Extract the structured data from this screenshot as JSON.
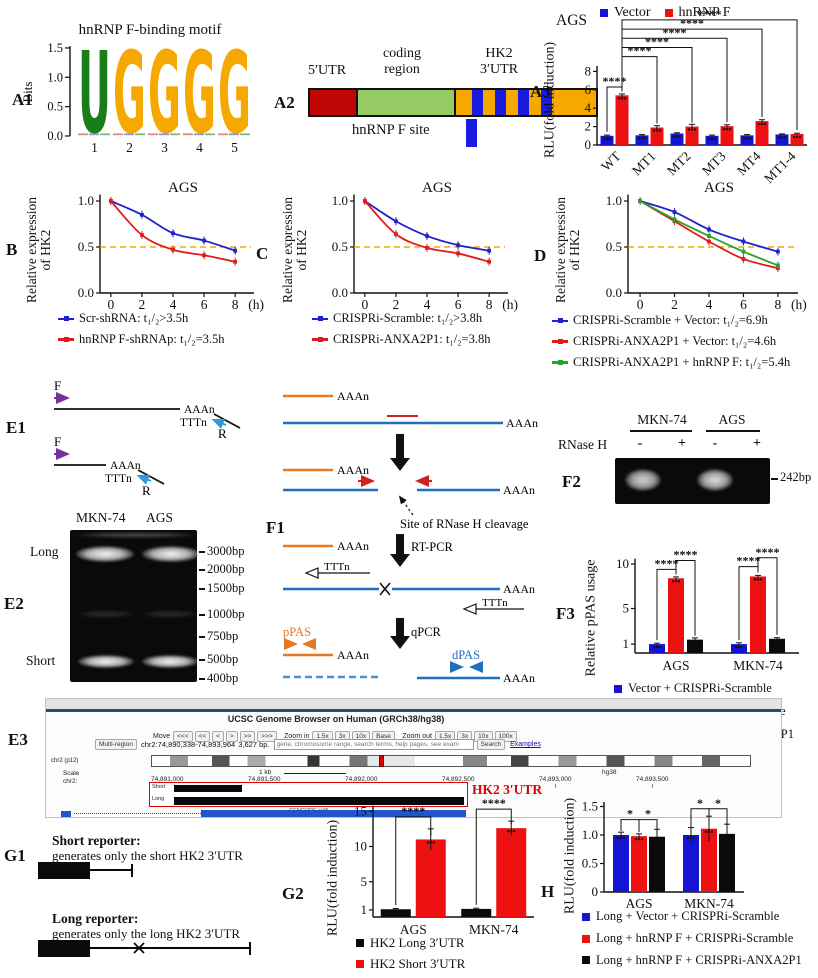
{
  "colors": {
    "blue": "#1414d2",
    "red": "#ee1111",
    "black_bar": "#0b0b0b",
    "green": "#2ca02c",
    "gold": "#f5a800",
    "logo_green": "#1a7d1a",
    "dash_orange": "#f0a800",
    "purple": "#7a2fa0",
    "light_blue": "#2e9bd6",
    "f1_orange": "#e87722",
    "f1_blue": "#1f6fbf",
    "highlight_red": "#e00000"
  },
  "panels": {
    "a1": {
      "label": "A1",
      "title": "hnRNP F-binding motif",
      "ylabel": "Bits",
      "yticks": [
        "1.5",
        "1.0",
        "0.5",
        "0.0"
      ],
      "positions": [
        "1",
        "2",
        "3",
        "4",
        "5"
      ],
      "letters": [
        "U",
        "G",
        "G",
        "G",
        "G"
      ]
    },
    "a2": {
      "label": "A2",
      "utr5": "5′UTR",
      "coding": "coding\nregion",
      "hk2": "HK2\n3′UTR",
      "site": "hnRNP F site"
    },
    "a3": {
      "label": "A3"
    },
    "b": {
      "label": "B"
    },
    "c": {
      "label": "C"
    },
    "d": {
      "label": "D"
    },
    "e1": {
      "label": "E1",
      "forward": "F",
      "reverse": "R",
      "polyA": "AAAn",
      "polyT": "TTTn"
    },
    "e2": {
      "label": "E2",
      "lanes": [
        "MKN-74",
        "AGS"
      ],
      "long": "Long",
      "short": "Short",
      "markers": [
        "3000bp",
        "2000bp",
        "1500bp",
        "1000bp",
        "750bp",
        "500bp",
        "400bp"
      ]
    },
    "e3": {
      "label": "E3",
      "title": "UCSC Genome Browser on Human (GRCh38/hg38)",
      "move_label": "Move",
      "move_buttons": [
        "<<<",
        "<<",
        "<",
        ">",
        ">>",
        ">>>"
      ],
      "zoom_in_label": "Zoom in",
      "zoom_in_buttons": [
        "1.5x",
        "3x",
        "10x",
        "Base"
      ],
      "zoom_out_label": "Zoom out",
      "zoom_out_buttons": [
        "1.5x",
        "3x",
        "10x",
        "100x"
      ],
      "multi_region": "Multi-region",
      "position": "chr2:74,890,338-74,893,964",
      "length": "3,627 bp.",
      "search_placeholder": "gene, chromosome range, search terms, help pages, see exam",
      "search_button": "Search",
      "examples_link": "Examples",
      "chrom_label": "chr2 (p12)",
      "scale_label": "Scale",
      "chrom": "chr2:",
      "scale_bar": "1 kb",
      "assembly": "hg38",
      "coords": [
        "74,891,000",
        "74,891,500",
        "74,892,000",
        "74,892,500",
        "74,893,000",
        "74,893,500"
      ],
      "track_short": "Short",
      "track_long": "Long",
      "gencode": "GENCODE V48",
      "highlight_label": "HK2 3′UTR"
    },
    "f1": {
      "label": "F1",
      "polyA": "AAAn",
      "polyT": "TTTn",
      "cleavage": "Site of RNase H cleavage",
      "rtpcr": "RT-PCR",
      "qpcr": "qPCR",
      "ppas": "pPAS",
      "dpas": "dPAS"
    },
    "f2": {
      "label": "F2",
      "groups": [
        "MKN-74",
        "AGS"
      ],
      "enzyme": "RNase H",
      "lanes": [
        "-",
        "+",
        "-",
        "+"
      ],
      "band": "242bp"
    },
    "f3": {
      "label": "F3"
    },
    "g1": {
      "label": "G1",
      "short_title": "Short reporter:",
      "short_desc": "generates only the short HK2 3′UTR",
      "long_title": "Long reporter:",
      "long_desc": "generates only the long HK2 3′UTR"
    },
    "g2": {
      "label": "G2"
    },
    "h": {
      "label": "H"
    }
  },
  "chart_data": [
    {
      "id": "A3",
      "type": "bar",
      "title": "AGS",
      "ylabel": "RLU(fold induction)",
      "ylim": [
        0,
        8.6
      ],
      "grid": false,
      "legend_position": "top",
      "yticks": [
        [
          0,
          "0"
        ],
        [
          2,
          "2"
        ],
        [
          4,
          "4"
        ],
        [
          6,
          "6"
        ],
        [
          8,
          "8"
        ]
      ],
      "categories": [
        "WT",
        "MT1",
        "MT2",
        "MT3",
        "MT4",
        "MT1-4"
      ],
      "series": [
        {
          "name": "Vector",
          "color": "#1414d2",
          "values": [
            1.0,
            1.05,
            1.25,
            1.0,
            1.05,
            1.15
          ],
          "err": [
            0.08,
            0.08,
            0.08,
            0.08,
            0.08,
            0.06
          ]
        },
        {
          "name": "hnRNP F",
          "color": "#ee1111",
          "values": [
            5.4,
            1.9,
            2.0,
            2.05,
            2.6,
            1.2
          ],
          "err": [
            0.15,
            0.2,
            0.25,
            0.15,
            0.15,
            0.08
          ]
        }
      ],
      "sig": [
        {
          "a": [
            0,
            0
          ],
          "b": [
            0,
            1
          ],
          "y": 6.3,
          "label": "****"
        },
        {
          "a": [
            0,
            1
          ],
          "b": [
            1,
            1
          ],
          "y": 9.6,
          "label": "****"
        },
        {
          "a": [
            0,
            1
          ],
          "b": [
            2,
            1
          ],
          "y": 10.6,
          "label": "****"
        },
        {
          "a": [
            0,
            1
          ],
          "b": [
            3,
            1
          ],
          "y": 11.6,
          "label": "****"
        },
        {
          "a": [
            0,
            1
          ],
          "b": [
            4,
            1
          ],
          "y": 12.6,
          "label": "****"
        },
        {
          "a": [
            0,
            1
          ],
          "b": [
            5,
            1
          ],
          "y": 13.6,
          "label": "****"
        }
      ]
    },
    {
      "id": "B",
      "type": "line",
      "title": "AGS",
      "ylabel": "Relative expression\nof HK2",
      "xlabel": "(h)",
      "x": [
        0,
        2,
        4,
        6,
        8
      ],
      "xticks": [
        0,
        2,
        4,
        6,
        8
      ],
      "yticks": [
        [
          0,
          "0.0"
        ],
        [
          0.5,
          "0.5"
        ],
        [
          1,
          "1.0"
        ]
      ],
      "ylim": [
        0,
        1.1
      ],
      "hline": 0.5,
      "legend_position": "bottom",
      "series": [
        {
          "name": "Scr-shRNA: t₁/₂>3.5h",
          "color": "#2121cc",
          "values": [
            1.0,
            0.85,
            0.65,
            0.57,
            0.46
          ]
        },
        {
          "name": "hnRNP F-shRNAp: t₁/₂=3.5h",
          "color": "#e01b1b",
          "values": [
            1.0,
            0.63,
            0.47,
            0.41,
            0.34
          ]
        }
      ]
    },
    {
      "id": "C",
      "type": "line",
      "title": "AGS",
      "ylabel": "Relative expression\nof HK2",
      "xlabel": "(h)",
      "x": [
        0,
        2,
        4,
        6,
        8
      ],
      "xticks": [
        0,
        2,
        4,
        6,
        8
      ],
      "yticks": [
        [
          0,
          "0.0"
        ],
        [
          0.5,
          "0.5"
        ],
        [
          1,
          "1.0"
        ]
      ],
      "ylim": [
        0,
        1.1
      ],
      "hline": 0.5,
      "legend_position": "bottom",
      "series": [
        {
          "name": "CRISPRi-Scramble: t₁/₂>3.8h",
          "color": "#2121cc",
          "values": [
            1.0,
            0.78,
            0.62,
            0.52,
            0.46
          ]
        },
        {
          "name": "CRISPRi-ANXA2P1: t₁/₂=3.8h",
          "color": "#e01b1b",
          "values": [
            1.0,
            0.64,
            0.49,
            0.43,
            0.34
          ]
        }
      ]
    },
    {
      "id": "D",
      "type": "line",
      "title": "AGS",
      "ylabel": "Relative expression\nof HK2",
      "xlabel": "(h)",
      "x": [
        0,
        2,
        4,
        6,
        8
      ],
      "xticks": [
        0,
        2,
        4,
        6,
        8
      ],
      "yticks": [
        [
          0,
          "0.0"
        ],
        [
          0.5,
          "0.5"
        ],
        [
          1,
          "1.0"
        ]
      ],
      "ylim": [
        0,
        1.1
      ],
      "hline": 0.5,
      "legend_position": "bottom",
      "series": [
        {
          "name": "CRISPRi-Scramble + Vector: t₁/₂=6.9h",
          "color": "#2121cc",
          "values": [
            1.0,
            0.88,
            0.69,
            0.56,
            0.45
          ]
        },
        {
          "name": "CRISPRi-ANXA2P1 + Vector: t₁/₂=4.6h",
          "color": "#e01b1b",
          "values": [
            1.0,
            0.78,
            0.56,
            0.37,
            0.27
          ]
        },
        {
          "name": "CRISPRi-ANXA2P1 + hnRNP F: t₁/₂=5.4h",
          "color": "#2ca02c",
          "values": [
            1.0,
            0.8,
            0.62,
            0.45,
            0.3
          ]
        }
      ]
    },
    {
      "id": "F3",
      "type": "bar",
      "title": "",
      "ylabel": "Relative pPAS usage",
      "ylim": [
        0,
        10.8
      ],
      "grid": false,
      "legend_position": "bottom",
      "yticks": [
        [
          1,
          "1"
        ],
        [
          5,
          "5"
        ],
        [
          10,
          "10"
        ]
      ],
      "categories": [
        "AGS",
        "MKN-74"
      ],
      "series": [
        {
          "name": "Vector + CRISPRi-Scramble",
          "color": "#1414d2",
          "values": [
            1.0,
            1.0
          ],
          "err": [
            0.1,
            0.15
          ]
        },
        {
          "name": "hnRNP F + CRISPRi-Scramble",
          "color": "#ee1111",
          "values": [
            8.4,
            8.6
          ],
          "err": [
            0.15,
            0.12
          ]
        },
        {
          "name": "hnRNP F + CRISPRi-ANXA2P1",
          "color": "#0b0b0b",
          "values": [
            1.5,
            1.6
          ],
          "err": [
            0.2,
            0.12
          ]
        }
      ],
      "sig": [
        {
          "a": [
            0,
            0
          ],
          "b": [
            0,
            1
          ],
          "y": 9.4,
          "label": "****"
        },
        {
          "a": [
            0,
            1
          ],
          "b": [
            0,
            2
          ],
          "y": 10.4,
          "label": "****"
        },
        {
          "a": [
            1,
            0
          ],
          "b": [
            1,
            1
          ],
          "y": 9.7,
          "label": "****"
        },
        {
          "a": [
            1,
            1
          ],
          "b": [
            1,
            2
          ],
          "y": 10.7,
          "label": "****"
        }
      ]
    },
    {
      "id": "G2",
      "type": "bar",
      "title": "",
      "ylabel": "RLU(fold induction)",
      "ylim": [
        0,
        16
      ],
      "grid": false,
      "legend_position": "bottom",
      "yticks": [
        [
          1,
          "1"
        ],
        [
          5,
          "5"
        ],
        [
          10,
          "10"
        ],
        [
          15,
          "15"
        ]
      ],
      "categories": [
        "AGS",
        "MKN-74"
      ],
      "series": [
        {
          "name": "HK2 Long 3′UTR",
          "color": "#0b0b0b",
          "values": [
            1.1,
            1.15
          ],
          "err": [
            0.1,
            0.1
          ]
        },
        {
          "name": "HK2 Short 3′UTR",
          "color": "#ee1111",
          "values": [
            11.0,
            12.6
          ],
          "err": [
            1.5,
            1.0
          ]
        }
      ],
      "sig": [
        {
          "a": [
            0,
            0
          ],
          "b": [
            0,
            1
          ],
          "y": 14.2,
          "label": "****"
        },
        {
          "a": [
            1,
            0
          ],
          "b": [
            1,
            1
          ],
          "y": 15.3,
          "label": "****"
        }
      ]
    },
    {
      "id": "H",
      "type": "bar",
      "title": "",
      "ylabel": "RLU(fold induction)",
      "ylim": [
        0,
        1.65
      ],
      "grid": false,
      "legend_position": "bottom",
      "yticks": [
        [
          0,
          "0"
        ],
        [
          0.5,
          "0.5"
        ],
        [
          1,
          "1.0"
        ],
        [
          1.5,
          "1.5"
        ]
      ],
      "categories": [
        "AGS",
        "MKN-74"
      ],
      "series": [
        {
          "name": "Long + Vector + CRISPRi-Scramble",
          "color": "#1414d2",
          "values": [
            1.0,
            1.0
          ],
          "err": [
            0.05,
            0.13
          ]
        },
        {
          "name": "Long + hnRNP F + CRISPRi-Scramble",
          "color": "#ee1111",
          "values": [
            0.98,
            1.11
          ],
          "err": [
            0.04,
            0.22
          ]
        },
        {
          "name": "Long + hnRNP F + CRISPRi-ANXA2P1",
          "color": "#0b0b0b",
          "values": [
            0.97,
            1.02
          ],
          "err": [
            0.13,
            0.17
          ]
        }
      ],
      "sig": [
        {
          "a": [
            0,
            0
          ],
          "b": [
            0,
            1
          ],
          "y": 1.27,
          "label": "*"
        },
        {
          "a": [
            0,
            1
          ],
          "b": [
            0,
            2
          ],
          "y": 1.27,
          "label": "*"
        },
        {
          "a": [
            1,
            0
          ],
          "b": [
            1,
            1
          ],
          "y": 1.46,
          "label": "*"
        },
        {
          "a": [
            1,
            1
          ],
          "b": [
            1,
            2
          ],
          "y": 1.46,
          "label": "*"
        }
      ]
    }
  ]
}
